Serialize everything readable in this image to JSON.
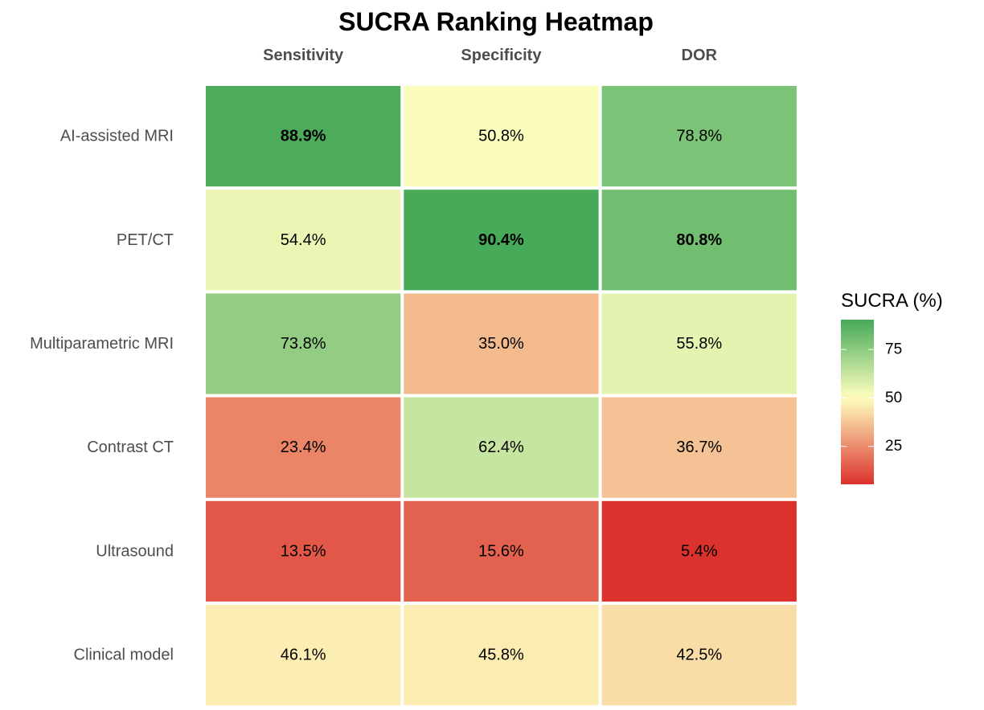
{
  "chart_data": {
    "type": "heatmap",
    "title": "SUCRA Ranking Heatmap",
    "columns": [
      "Sensitivity",
      "Specificity",
      "DOR"
    ],
    "rows": [
      "AI-assisted MRI",
      "PET/CT",
      "Multiparametric MRI",
      "Contrast CT",
      "Ultrasound",
      "Clinical model"
    ],
    "values": [
      [
        88.9,
        50.8,
        78.8
      ],
      [
        54.4,
        90.4,
        80.8
      ],
      [
        73.8,
        35.0,
        55.8
      ],
      [
        23.4,
        62.4,
        36.7
      ],
      [
        13.5,
        15.6,
        5.4
      ],
      [
        46.1,
        45.8,
        42.5
      ]
    ],
    "labels": [
      [
        "88.9%",
        "50.8%",
        "78.8%"
      ],
      [
        "54.4%",
        "90.4%",
        "80.8%"
      ],
      [
        "73.8%",
        "35.0%",
        "55.8%"
      ],
      [
        "23.4%",
        "62.4%",
        "36.7%"
      ],
      [
        "13.5%",
        "15.6%",
        "5.4%"
      ],
      [
        "46.1%",
        "45.8%",
        "42.5%"
      ]
    ],
    "bold_cells": [
      [
        0,
        0
      ],
      [
        1,
        1
      ],
      [
        1,
        2
      ]
    ],
    "legend": {
      "title": "SUCRA (%)",
      "ticks": [
        25,
        50,
        75
      ],
      "tick_labels": [
        "25",
        "50",
        "75"
      ],
      "range": [
        5.4,
        90.4
      ],
      "placement": "right"
    },
    "color_scale": {
      "low": "#d7191c",
      "mid": "#ffffbf",
      "high": "#1a9641",
      "midpoint": 50
    },
    "grid": false
  }
}
